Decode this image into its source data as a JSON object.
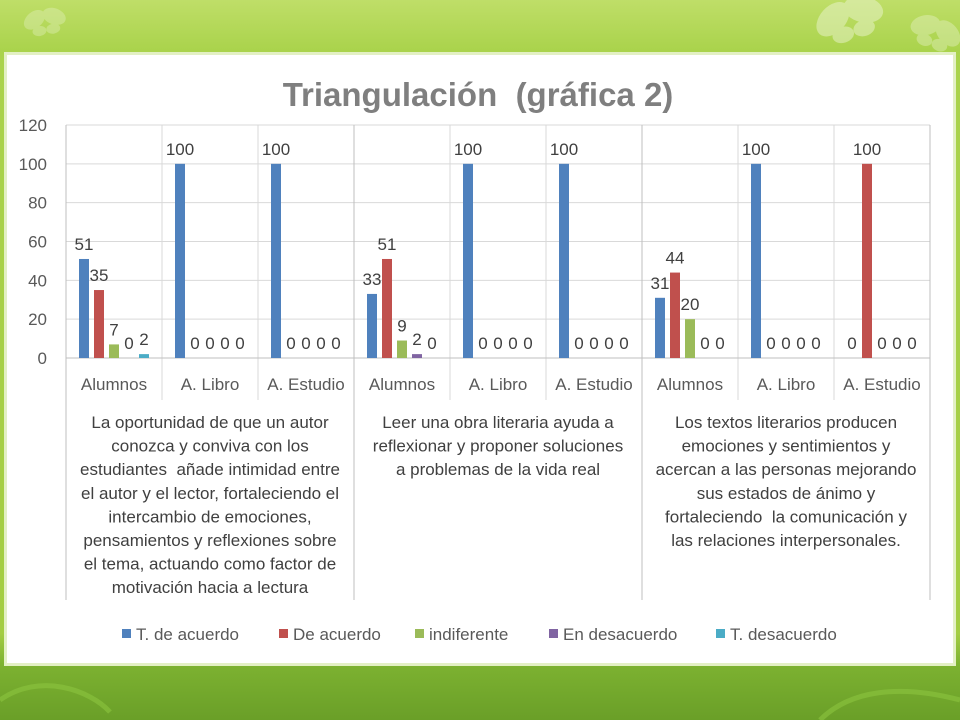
{
  "chart_data": {
    "type": "bar",
    "title": "Triangulación  (gráfica 2)",
    "ylim": [
      0,
      120
    ],
    "yticks": [
      0,
      20,
      40,
      60,
      80,
      100,
      120
    ],
    "grid": true,
    "data_labels": true,
    "legend_position": "bottom",
    "categories": [
      "Alumnos",
      "A. Libro",
      "A. Estudio",
      "Alumnos",
      "A. Libro",
      "A. Estudio",
      "Alumnos",
      "A. Libro",
      "A. Estudio"
    ],
    "category_groups": [
      {
        "span": 3,
        "label_lines": [
          "La oportunidad de que un autor",
          "conozca y conviva con los",
          "estudiantes  añade intimidad entre",
          "el autor y el lector, fortaleciendo el",
          "intercambio de emociones,",
          "pensamientos y reflexiones sobre",
          "el tema, actuando como factor de",
          "motivación hacia a lectura"
        ]
      },
      {
        "span": 3,
        "label_lines": [
          "Leer una obra literaria ayuda a",
          "reflexionar y proponer soluciones",
          "a problemas de la vida real"
        ]
      },
      {
        "span": 3,
        "label_lines": [
          "Los textos literarios producen",
          "emociones y sentimientos y",
          "acercan a las personas mejorando",
          "sus estados de ánimo y",
          "fortaleciendo  la comunicación y",
          "las relaciones interpersonales."
        ]
      }
    ],
    "series": [
      {
        "name": "T. de acuerdo",
        "color": "#4F81BD",
        "values": [
          51,
          100,
          100,
          33,
          100,
          100,
          31,
          100,
          0
        ]
      },
      {
        "name": "De acuerdo",
        "color": "#C0504D",
        "values": [
          35,
          0,
          0,
          51,
          0,
          0,
          44,
          0,
          100
        ]
      },
      {
        "name": "indiferente",
        "color": "#9BBB59",
        "values": [
          7,
          0,
          0,
          9,
          0,
          0,
          20,
          0,
          0
        ]
      },
      {
        "name": "En desacuerdo",
        "color": "#8064A2",
        "values": [
          0,
          0,
          0,
          2,
          0,
          0,
          0,
          0,
          0
        ]
      },
      {
        "name": "T. desacuerdo",
        "color": "#4BACC6",
        "values": [
          2,
          0,
          0,
          0,
          0,
          0,
          0,
          0,
          0
        ]
      }
    ]
  }
}
